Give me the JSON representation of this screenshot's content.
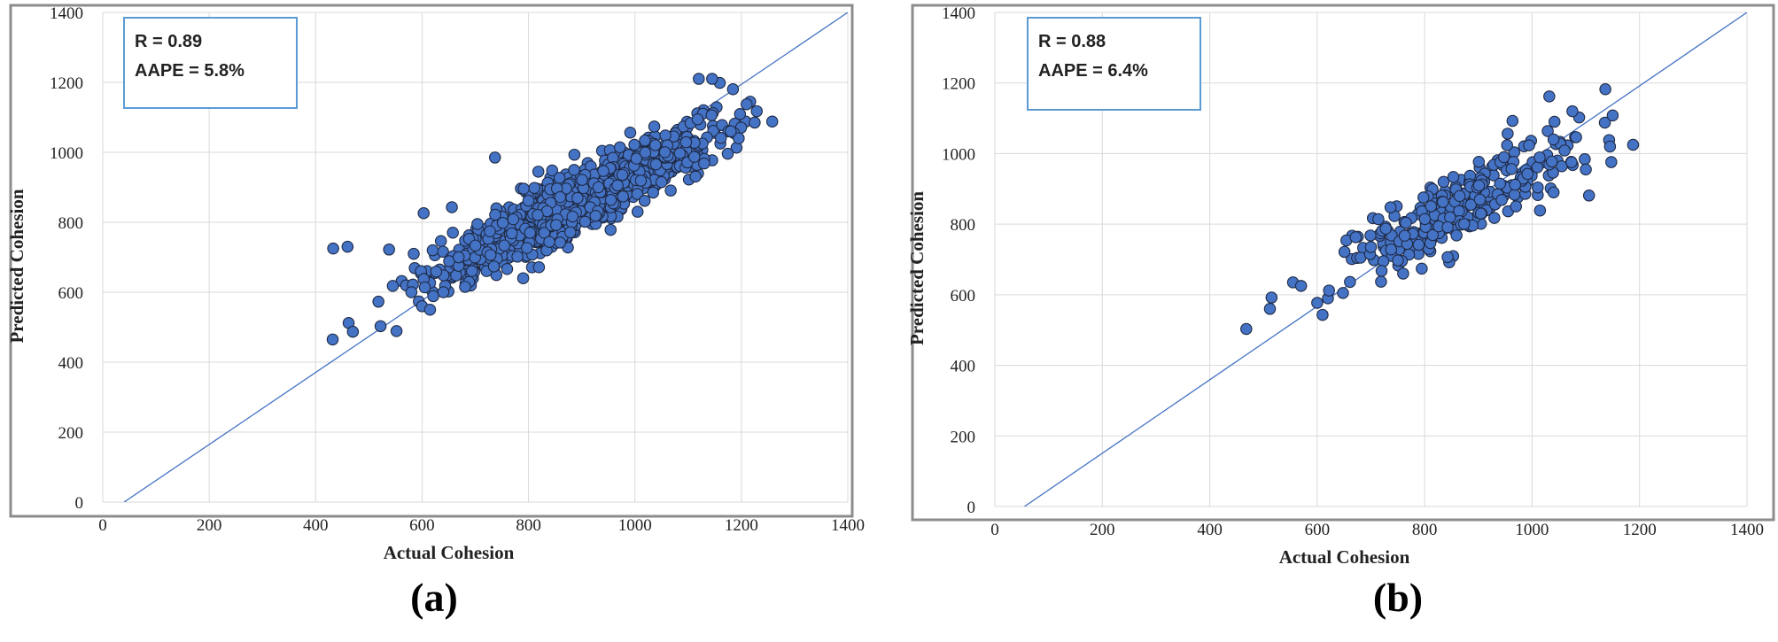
{
  "chart_data": [
    {
      "type": "scatter",
      "panel_label": "(a)",
      "xlabel": "Actual Cohesion",
      "ylabel": "Predicted Cohesion",
      "xlim": [
        0,
        1400
      ],
      "ylim": [
        0,
        1400
      ],
      "x_ticks": [
        "0",
        "200",
        "400",
        "600",
        "800",
        "1000",
        "1200",
        "1400"
      ],
      "y_ticks": [
        "0",
        "200",
        "400",
        "600",
        "800",
        "1000",
        "1200",
        "1400"
      ],
      "grid": true,
      "marker_color": "#4472c4",
      "stats": [
        "R = 0.89",
        "AAPE = 5.8%"
      ],
      "reference_line": {
        "x": [
          40,
          1400
        ],
        "y": [
          0,
          1400
        ]
      },
      "cloud": {
        "count": 1100,
        "x_mean": 880,
        "x_sd": 130,
        "x_min": 560,
        "x_max": 1260,
        "slope": 0.74,
        "intercept": 200,
        "noise_sd": 45,
        "seed": 7
      },
      "points": [
        {
          "x": 432,
          "y": 465
        },
        {
          "x": 433,
          "y": 725
        },
        {
          "x": 460,
          "y": 730
        },
        {
          "x": 462,
          "y": 512
        },
        {
          "x": 470,
          "y": 487
        },
        {
          "x": 522,
          "y": 503
        },
        {
          "x": 538,
          "y": 722
        },
        {
          "x": 552,
          "y": 489
        },
        {
          "x": 518,
          "y": 573
        },
        {
          "x": 545,
          "y": 618
        },
        {
          "x": 603,
          "y": 826
        },
        {
          "x": 656,
          "y": 843
        },
        {
          "x": 737,
          "y": 985
        },
        {
          "x": 790,
          "y": 640
        },
        {
          "x": 1005,
          "y": 830
        },
        {
          "x": 1130,
          "y": 968
        },
        {
          "x": 1120,
          "y": 1210
        },
        {
          "x": 1145,
          "y": 1210
        },
        {
          "x": 1258,
          "y": 1088
        },
        {
          "x": 1225,
          "y": 1085
        },
        {
          "x": 1195,
          "y": 1040
        },
        {
          "x": 1180,
          "y": 1060
        },
        {
          "x": 620,
          "y": 720
        },
        {
          "x": 600,
          "y": 560
        },
        {
          "x": 615,
          "y": 550
        },
        {
          "x": 580,
          "y": 600
        },
        {
          "x": 640,
          "y": 600
        }
      ]
    },
    {
      "type": "scatter",
      "panel_label": "(b)",
      "xlabel": "Actual Cohesion",
      "ylabel": "Predicted Cohesion",
      "xlim": [
        0,
        1400
      ],
      "ylim": [
        0,
        1400
      ],
      "x_ticks": [
        "0",
        "200",
        "400",
        "600",
        "800",
        "1000",
        "1200",
        "1400"
      ],
      "y_ticks": [
        "0",
        "200",
        "400",
        "600",
        "800",
        "1000",
        "1200",
        "1400"
      ],
      "grid": true,
      "marker_color": "#4472c4",
      "stats": [
        "R = 0.88",
        "AAPE = 6.4%"
      ],
      "reference_line": {
        "x": [
          55,
          1400
        ],
        "y": [
          0,
          1400
        ]
      },
      "cloud": {
        "count": 280,
        "x_mean": 870,
        "x_sd": 125,
        "x_min": 640,
        "x_max": 1160,
        "slope": 0.76,
        "intercept": 195,
        "noise_sd": 50,
        "seed": 21
      },
      "points": [
        {
          "x": 468,
          "y": 503
        },
        {
          "x": 512,
          "y": 560
        },
        {
          "x": 515,
          "y": 592
        },
        {
          "x": 555,
          "y": 635
        },
        {
          "x": 570,
          "y": 625
        },
        {
          "x": 600,
          "y": 577
        },
        {
          "x": 610,
          "y": 543
        },
        {
          "x": 620,
          "y": 590
        },
        {
          "x": 622,
          "y": 612
        },
        {
          "x": 648,
          "y": 605
        },
        {
          "x": 1032,
          "y": 1162
        },
        {
          "x": 1075,
          "y": 1120
        },
        {
          "x": 1150,
          "y": 1108
        },
        {
          "x": 1188,
          "y": 1025
        },
        {
          "x": 1145,
          "y": 1020
        },
        {
          "x": 1100,
          "y": 955
        },
        {
          "x": 1040,
          "y": 890
        },
        {
          "x": 700,
          "y": 735
        },
        {
          "x": 760,
          "y": 660
        }
      ]
    }
  ]
}
